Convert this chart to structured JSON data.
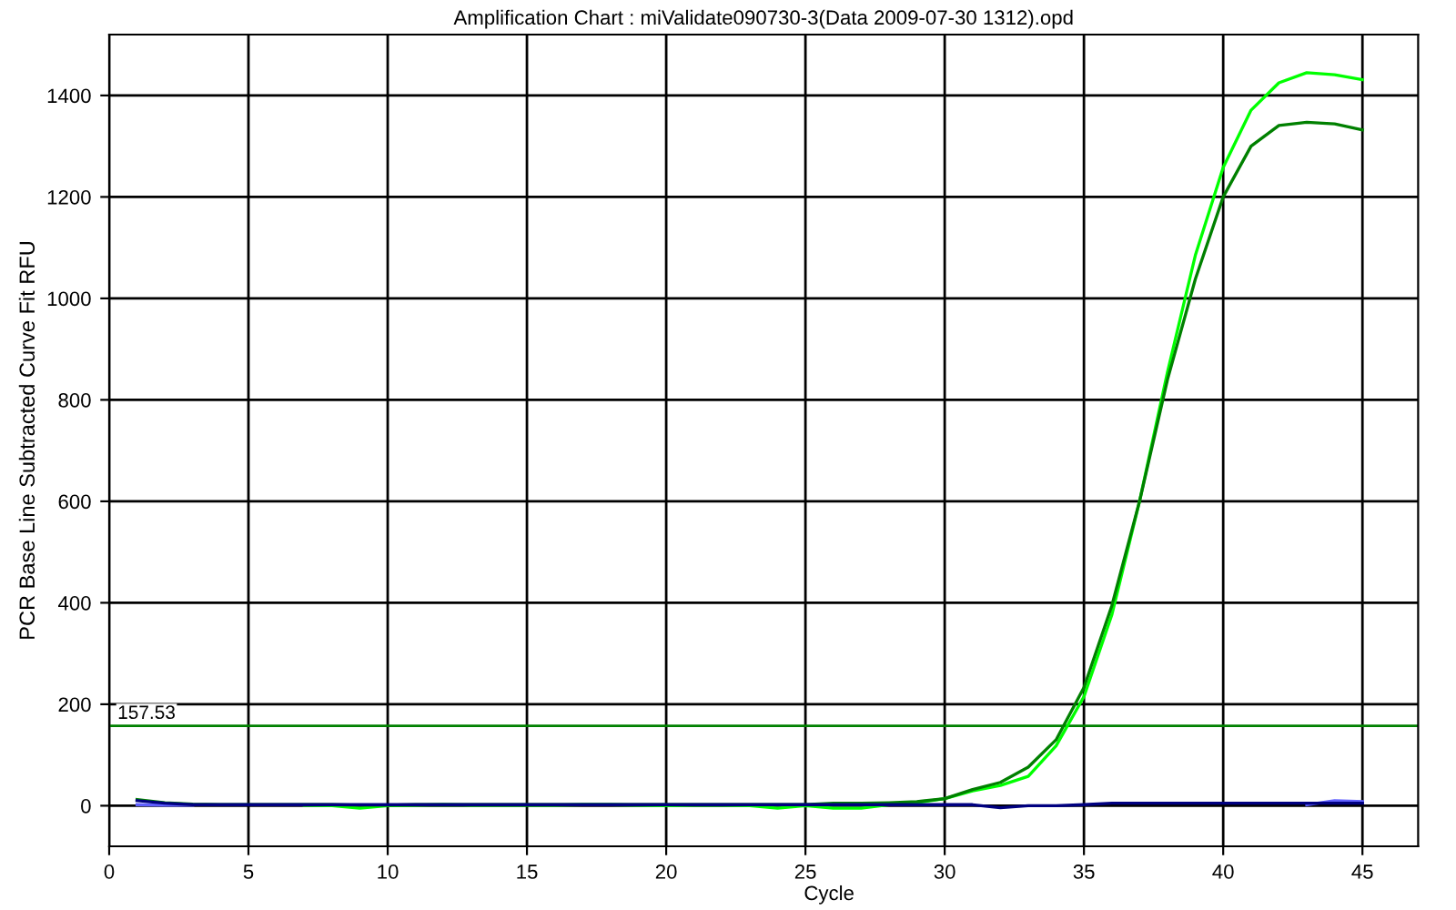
{
  "chart_data": {
    "type": "line",
    "title": "Amplification Chart : miValidate090730-3(Data 2009-07-30 1312).opd",
    "xlabel": "Cycle",
    "ylabel": "PCR Base Line Subtracted Curve Fit RFU",
    "x": [
      1,
      2,
      3,
      4,
      5,
      6,
      7,
      8,
      9,
      10,
      11,
      12,
      13,
      14,
      15,
      16,
      17,
      18,
      19,
      20,
      21,
      22,
      23,
      24,
      25,
      26,
      27,
      28,
      29,
      30,
      31,
      32,
      33,
      34,
      35,
      36,
      37,
      38,
      39,
      40,
      41,
      42,
      43,
      44,
      45
    ],
    "series": [
      {
        "color": "#00ff00",
        "values": [
          null,
          null,
          null,
          null,
          null,
          null,
          1,
          0,
          -5,
          0,
          1,
          2,
          1,
          1,
          1,
          1,
          2,
          2,
          1,
          0,
          1,
          1,
          0,
          -5,
          0,
          -5,
          -5,
          2,
          6,
          14,
          29,
          40,
          58,
          118,
          215,
          376,
          601,
          855,
          1085,
          1258,
          1371,
          1425,
          1445,
          1441,
          1431
        ]
      },
      {
        "color": "#008000",
        "values": [
          12,
          6,
          3,
          2,
          2,
          2,
          2,
          2,
          1,
          1,
          2,
          2,
          2,
          2,
          2,
          2,
          2,
          2,
          2,
          2,
          2,
          2,
          2,
          2,
          2,
          5,
          5,
          6,
          8,
          14,
          32,
          46,
          76,
          130,
          233,
          394,
          601,
          840,
          1038,
          1200,
          1300,
          1341,
          1347,
          1344,
          1332
        ]
      },
      {
        "color": "#6060ff",
        "values": [
          2,
          1,
          1,
          null,
          null,
          null,
          null,
          null,
          null,
          null,
          null,
          null,
          null,
          null,
          null,
          null,
          null,
          null,
          null,
          null,
          null,
          null,
          null,
          null,
          null,
          null,
          null,
          null,
          null,
          null,
          null,
          null,
          null,
          null,
          null,
          null,
          null,
          null,
          null,
          null,
          null,
          null,
          2,
          10,
          8
        ]
      },
      {
        "color": "#000080",
        "values": [
          10,
          5,
          2,
          2,
          2,
          2,
          2,
          2,
          2,
          2,
          2,
          2,
          2,
          2,
          2,
          2,
          2,
          2,
          2,
          2,
          2,
          2,
          2,
          2,
          2,
          2,
          2,
          2,
          2,
          2,
          2,
          -4,
          0,
          0,
          2,
          5,
          5,
          5,
          5,
          5,
          5,
          5,
          5,
          5,
          5
        ]
      }
    ],
    "ref_lines": [
      {
        "axis": "y",
        "value": 157.53,
        "label": "157.53",
        "color": "#008000"
      }
    ],
    "xlim": [
      0,
      47
    ],
    "xticks": [
      0,
      5,
      10,
      15,
      20,
      25,
      30,
      35,
      40,
      45
    ],
    "ylim": [
      -80,
      1520
    ],
    "yticks": [
      0,
      200,
      400,
      600,
      800,
      1000,
      1200,
      1400
    ],
    "grid": true
  }
}
